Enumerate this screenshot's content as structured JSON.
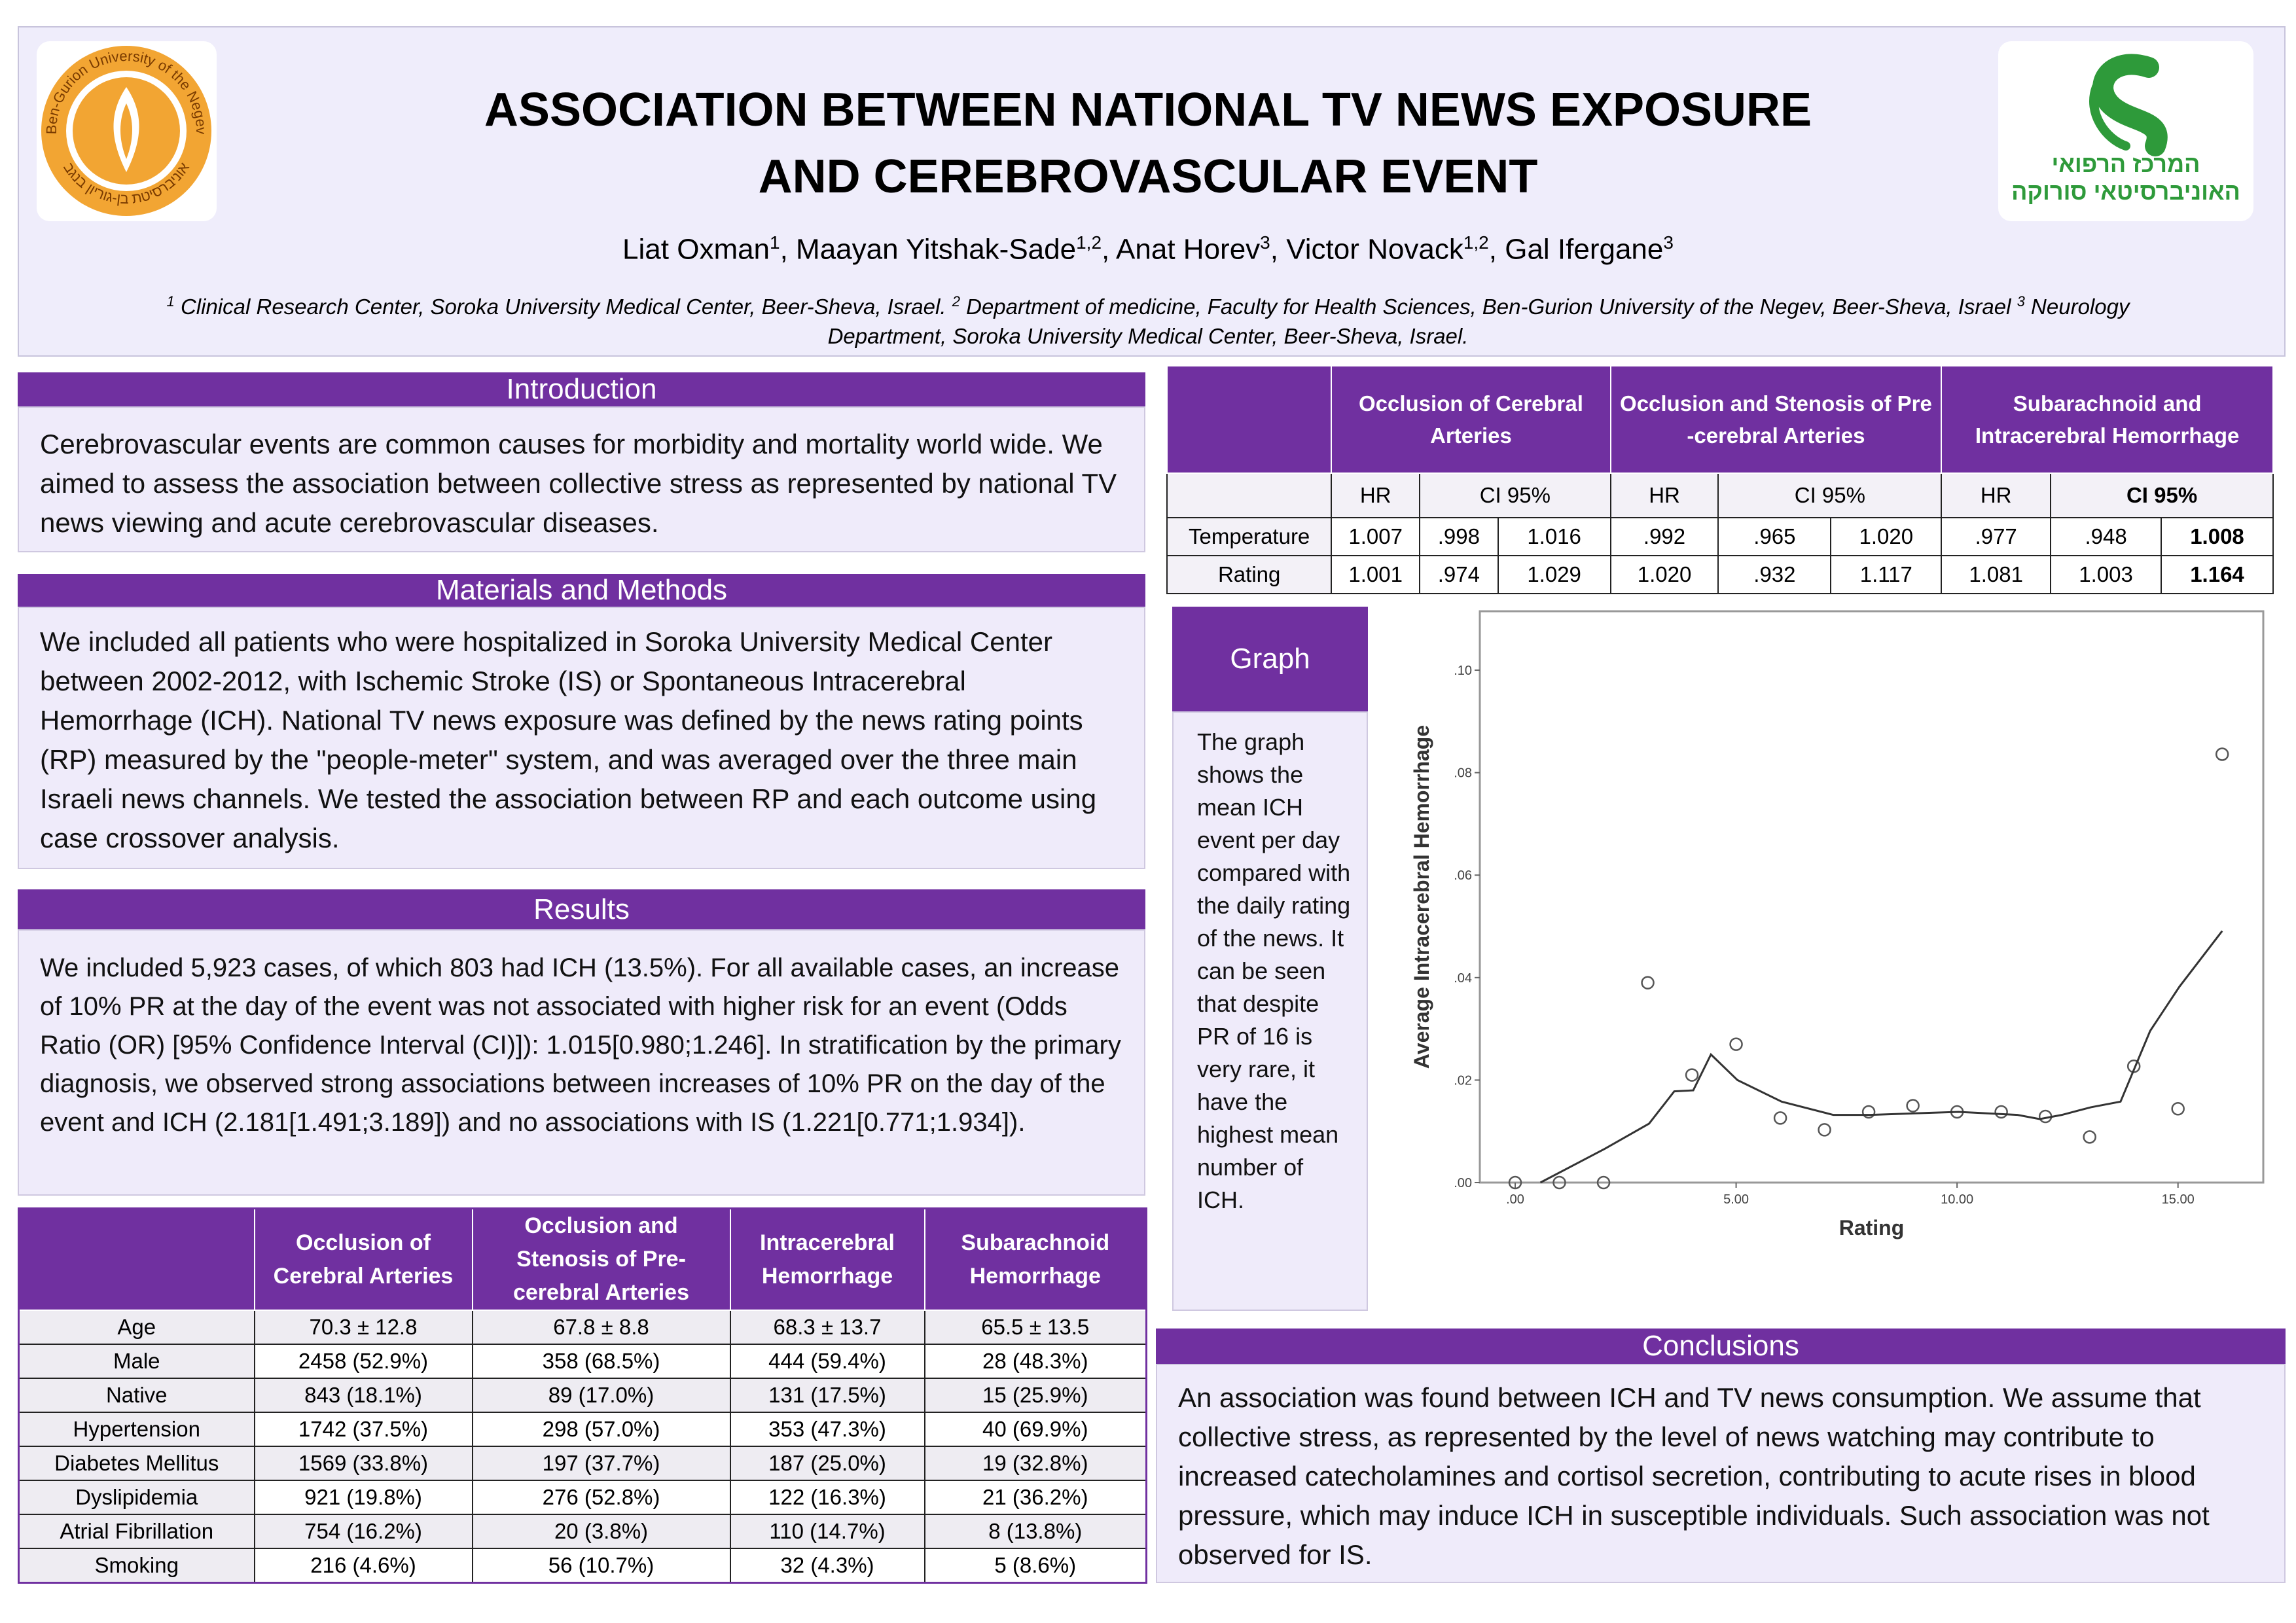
{
  "header": {
    "title": [
      "ASSOCIATION BETWEEN NATIONAL TV NEWS EXPOSURE",
      "AND CEREBROVASCULAR EVENT"
    ],
    "authors": [
      {
        "name": "Liat Oxman",
        "sup": "1"
      },
      {
        "name": ", Maayan Yitshak-Sade",
        "sup": "1,2"
      },
      {
        "name": ", Anat Horev",
        "sup": "3"
      },
      {
        "name": ", Victor Novack",
        "sup": "1,2"
      },
      {
        "name": ", Gal Ifergane",
        "sup": "3"
      }
    ],
    "affiliations": [
      {
        "sup": "1",
        "text": " Clinical Research Center, Soroka University Medical Center, Beer-Sheva, Israel. "
      },
      {
        "sup": "2",
        "text": " Department of medicine, Faculty for Health Sciences, Ben-Gurion University of the Negev, Beer-Sheva, Israel "
      },
      {
        "sup": "3",
        "text": " Neurology Department, Soroka University Medical Center, Beer-Sheva, Israel."
      }
    ]
  },
  "logos": {
    "left": [
      "Ben-Gurion University of the Negev",
      "אוניברסיטת בן-גוריון בנגב"
    ],
    "right": [
      "המרכז הרפואי",
      "האוניברסיטאי סורוקה"
    ]
  },
  "sections": {
    "introduction": {
      "heading": "Introduction",
      "body": "Cerebrovascular events are common causes for morbidity and mortality world wide. We aimed to assess the association between collective stress as represented by national TV news viewing and acute cerebrovascular diseases."
    },
    "methods": {
      "heading": "Materials and Methods",
      "body": "We included all patients who were hospitalized in Soroka University Medical Center between 2002-2012, with Ischemic Stroke (IS) or Spontaneous Intracerebral Hemorrhage (ICH). National TV news exposure was defined by the news rating points (RP) measured by the \"people-meter\" system, and was averaged over the three main Israeli news channels. We tested the association between RP and each outcome using case crossover analysis."
    },
    "results": {
      "heading": "Results",
      "body": "We included 5,923 cases, of which 803 had ICH (13.5%). For all available cases, an increase of 10% PR at the day of the event was not associated with higher risk for an event (Odds Ratio (OR) [95% Confidence Interval (CI)]): 1.015[0.980;1.246]. In stratification by the primary diagnosis, we observed strong associations between increases of 10% PR on the day of the event and ICH (2.181[1.491;3.189]) and no associations with IS (1.221[0.771;1.934])."
    },
    "conclusions": {
      "heading": "Conclusions",
      "body": "An association was found between ICH and TV news consumption. We assume that collective stress, as represented by the level of news watching may contribute to increased catecholamines and cortisol secretion, contributing to acute rises in blood pressure, which may induce ICH in susceptible individuals. Such association was not observed for IS."
    }
  },
  "graph_panel": {
    "heading": "Graph",
    "body": "The graph shows the mean ICH event per day compared with the daily rating of the news. It can be seen that despite PR of 16 is very rare, it have the highest mean number of ICH."
  },
  "hr_table": {
    "groups": [
      "Occlusion of Cerebral Arteries",
      "Occlusion and Stenosis of Pre -cerebral Arteries",
      "Subarachnoid and Intracerebral Hemorrhage"
    ],
    "subheader": [
      "HR",
      "CI 95%",
      "HR",
      "CI 95%",
      "HR",
      "CI 95%"
    ],
    "rows": [
      {
        "label": "Temperature",
        "cells": [
          "1.007",
          ".998",
          "1.016",
          ".992",
          ".965",
          "1.020",
          ".977",
          ".948",
          "1.008"
        ]
      },
      {
        "label": "Rating",
        "cells": [
          "1.001",
          ".974",
          "1.029",
          "1.020",
          ".932",
          "1.117",
          "1.081",
          "1.003",
          "1.164"
        ]
      }
    ]
  },
  "characteristics_table": {
    "columns": [
      "Occlusion of Cerebral Arteries",
      "Occlusion and Stenosis of Pre-cerebral Arteries",
      "Intracerebral Hemorrhage",
      "Subarachnoid Hemorrhage"
    ],
    "rows": [
      {
        "label": "Age",
        "cells": [
          "70.3 ± 12.8",
          "67.8 ± 8.8",
          "68.3 ± 13.7",
          "65.5 ± 13.5"
        ]
      },
      {
        "label": "Male",
        "cells": [
          "2458 (52.9%)",
          "358 (68.5%)",
          "444 (59.4%)",
          "28 (48.3%)"
        ]
      },
      {
        "label": "Native",
        "cells": [
          "843 (18.1%)",
          "89 (17.0%)",
          "131 (17.5%)",
          "15 (25.9%)"
        ]
      },
      {
        "label": "Hypertension",
        "cells": [
          "1742 (37.5%)",
          "298 (57.0%)",
          "353 (47.3%)",
          "40 (69.9%)"
        ]
      },
      {
        "label": "Diabetes Mellitus",
        "cells": [
          "1569 (33.8%)",
          "197 (37.7%)",
          "187 (25.0%)",
          "19 (32.8%)"
        ]
      },
      {
        "label": "Dyslipidemia",
        "cells": [
          "921 (19.8%)",
          "276 (52.8%)",
          "122 (16.3%)",
          "21 (36.2%)"
        ]
      },
      {
        "label": "Atrial Fibrillation",
        "cells": [
          "754 (16.2%)",
          "20 (3.8%)",
          "110 (14.7%)",
          "8 (13.8%)"
        ]
      },
      {
        "label": "Smoking",
        "cells": [
          "216 (4.6%)",
          "56 (10.7%)",
          "32 (4.3%)",
          "5 (8.6%)"
        ]
      }
    ]
  },
  "chart_data": {
    "type": "scatter",
    "x_label": "Rating",
    "y_label": "Average Intracerebral Hemorrhage",
    "xlim": [
      -0.8,
      16.93
    ],
    "ylim": [
      0,
      0.1115
    ],
    "xticks": [
      {
        "value": 0,
        "label": ".00"
      },
      {
        "value": 5,
        "label": "5.00"
      },
      {
        "value": 10,
        "label": "10.00"
      },
      {
        "value": 15,
        "label": "15.00"
      }
    ],
    "yticks": [
      {
        "value": 0,
        "label": ".00"
      },
      {
        "value": 0.02,
        "label": ".02"
      },
      {
        "value": 0.04,
        "label": ".04"
      },
      {
        "value": 0.06,
        "label": ".06"
      },
      {
        "value": 0.08,
        "label": ".08"
      },
      {
        "value": 0.1,
        "label": ".10"
      }
    ],
    "series": [
      {
        "type": "scatter",
        "color": "#555555",
        "x": [
          0,
          1,
          2,
          3,
          4,
          5,
          6,
          7,
          8,
          9,
          10,
          11,
          12,
          13,
          14,
          15,
          16
        ],
        "values": [
          0,
          0,
          0,
          0.039,
          0.021,
          0.027,
          0.0126,
          0.0103,
          0.0138,
          0.015,
          0.0138,
          0.0138,
          0.0129,
          0.0089,
          0.0227,
          0.0144,
          0.0836
        ]
      },
      {
        "type": "line",
        "color": "#333333",
        "x": [
          0.57,
          2.03,
          3.03,
          3.6,
          4.03,
          4.43,
          5.03,
          6.03,
          7.2,
          8.03,
          10.03,
          11.37,
          11.87,
          12.37,
          13.03,
          13.7,
          14.37,
          15.03,
          16
        ],
        "values": [
          0,
          0.0066,
          0.0115,
          0.0178,
          0.018,
          0.025,
          0.02,
          0.0158,
          0.0132,
          0.0132,
          0.0138,
          0.0132,
          0.0124,
          0.0132,
          0.0147,
          0.0158,
          0.0296,
          0.0382,
          0.0491
        ]
      }
    ]
  }
}
